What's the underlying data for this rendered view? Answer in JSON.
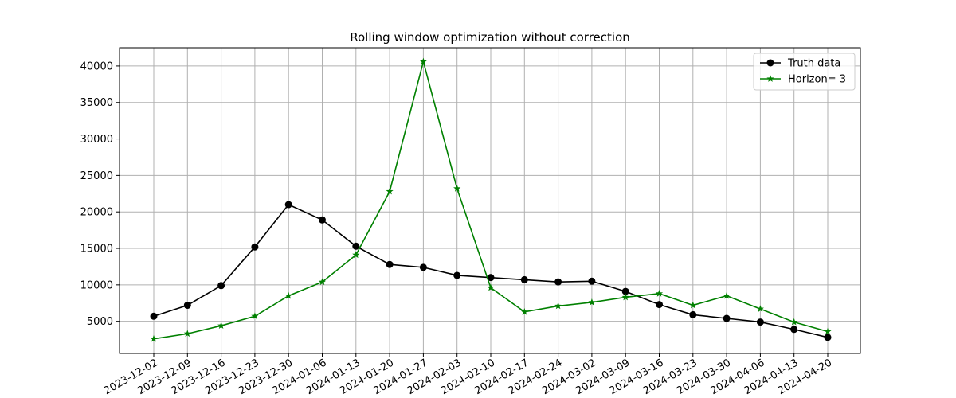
{
  "chart_data": {
    "type": "line",
    "title": "Rolling window optimization without correction",
    "xlabel": "",
    "ylabel": "",
    "categories": [
      "2023-12-02",
      "2023-12-09",
      "2023-12-16",
      "2023-12-23",
      "2023-12-30",
      "2024-01-06",
      "2024-01-13",
      "2024-01-20",
      "2024-01-27",
      "2024-02-03",
      "2024-02-10",
      "2024-02-17",
      "2024-02-24",
      "2024-03-02",
      "2024-03-09",
      "2024-03-16",
      "2024-03-23",
      "2024-03-30",
      "2024-04-06",
      "2024-04-13",
      "2024-04-20"
    ],
    "y_ticks": [
      5000,
      10000,
      15000,
      20000,
      25000,
      30000,
      35000,
      40000
    ],
    "ylim": [
      600,
      42500
    ],
    "grid": true,
    "legend_position": "top-right",
    "series": [
      {
        "name": "Truth data",
        "color": "#000000",
        "marker": "circle",
        "values": [
          5700,
          7200,
          9900,
          15200,
          21000,
          18900,
          15300,
          12800,
          12400,
          11300,
          11000,
          10700,
          10400,
          10500,
          9100,
          7300,
          5900,
          5400,
          4900,
          3900,
          2800
        ]
      },
      {
        "name": "Horizon= 3",
        "color": "#008000",
        "marker": "star",
        "values": [
          2600,
          3300,
          4400,
          5700,
          8500,
          10400,
          14100,
          22800,
          40600,
          23200,
          9600,
          6300,
          7100,
          7600,
          8300,
          8800,
          7200,
          8500,
          6700,
          4900,
          3600
        ]
      }
    ]
  }
}
